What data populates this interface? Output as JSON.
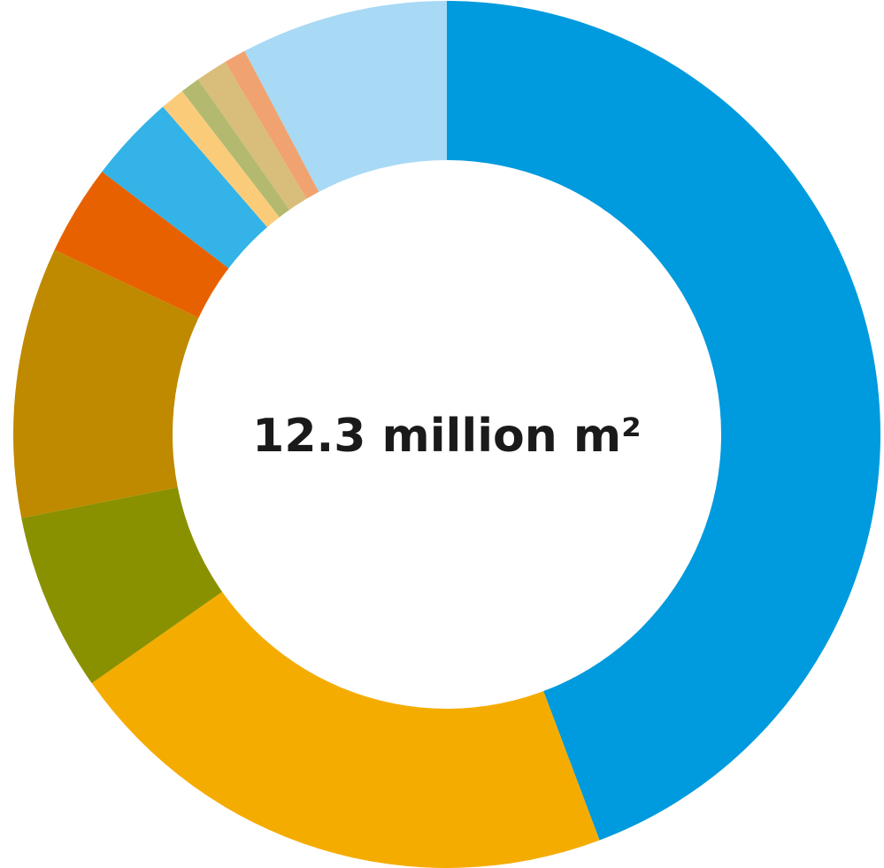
{
  "chart_data": {
    "type": "pie",
    "variant": "donut",
    "center_label": "12.3 million m²",
    "slices": [
      {
        "value": 48.7,
        "color": "#009ADE"
      },
      {
        "value": 23.1,
        "color": "#F5AC00"
      },
      {
        "value": 7.3,
        "color": "#8A9100"
      },
      {
        "value": 11.1,
        "color": "#BF8A00"
      },
      {
        "value": 3.7,
        "color": "#E86100"
      },
      {
        "value": 3.6,
        "color": "#33B3E8"
      },
      {
        "value": 1.0,
        "color": "#FACC7A"
      },
      {
        "value": 0.8,
        "color": "#B3BA70"
      },
      {
        "value": 1.3,
        "color": "#D9BD7A"
      },
      {
        "value": 0.9,
        "color": "#F0A370"
      },
      {
        "value": 8.5,
        "color": "#A8D9F5"
      }
    ]
  }
}
